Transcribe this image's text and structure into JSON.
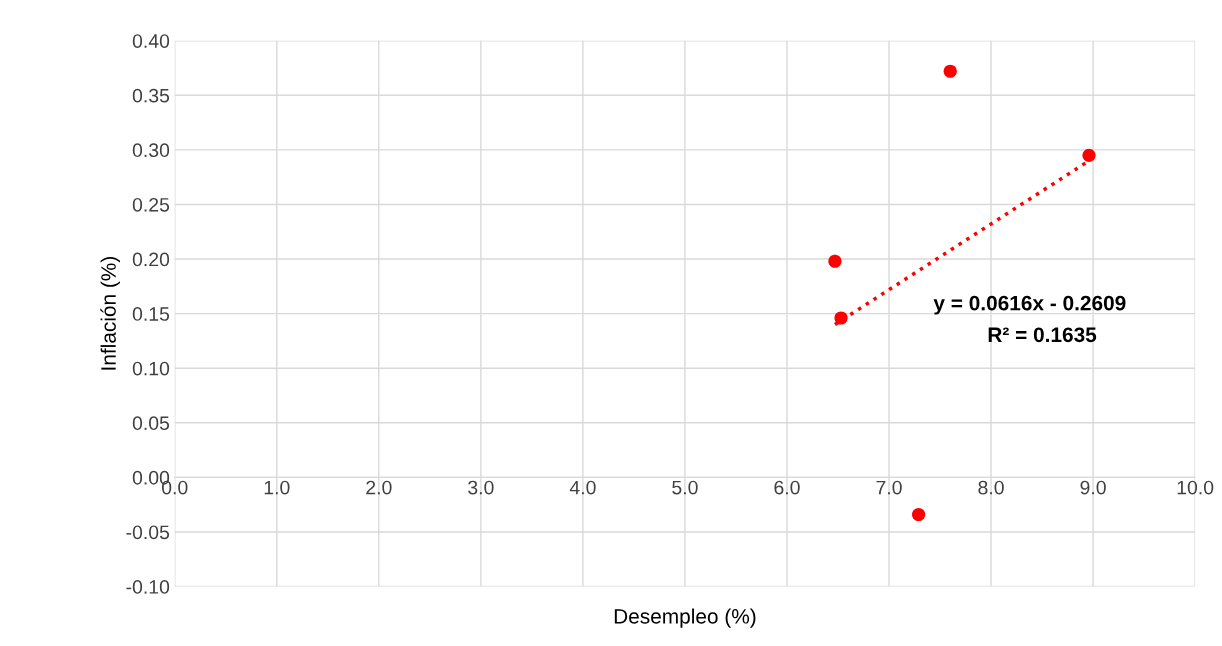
{
  "chart_data": {
    "type": "scatter",
    "xlabel": "Desempleo (%)",
    "ylabel": "Inflación (%)",
    "series": [
      {
        "color": "#ff0000",
        "x": [
          6.47,
          6.53,
          7.6,
          8.96,
          7.29
        ],
        "values": [
          0.198,
          0.146,
          0.372,
          0.295,
          -0.034
        ],
        "marker": "circle"
      },
      {
        "type": "line",
        "color": "#ff0000",
        "x": [
          6.47,
          8.96
        ],
        "values": [
          0.14,
          0.29
        ],
        "line_style": "dotted"
      }
    ],
    "annotations": [
      "y = 0.0616x - 0.2609",
      "R² = 0.1635"
    ],
    "xlim": [
      0,
      10
    ],
    "xticks": [
      {
        "value": 0,
        "label": "0.0"
      },
      {
        "value": 1,
        "label": "1.0"
      },
      {
        "value": 2,
        "label": "2.0"
      },
      {
        "value": 3,
        "label": "3.0"
      },
      {
        "value": 4,
        "label": "4.0"
      },
      {
        "value": 5,
        "label": "5.0"
      },
      {
        "value": 6,
        "label": "6.0"
      },
      {
        "value": 7,
        "label": "7.0"
      },
      {
        "value": 8,
        "label": "8.0"
      },
      {
        "value": 9,
        "label": "9.0"
      },
      {
        "value": 10,
        "label": "10.0"
      }
    ],
    "ylim": [
      -0.1,
      0.4
    ],
    "yticks": [
      {
        "value": -0.1,
        "label": "-0.10"
      },
      {
        "value": -0.05,
        "label": "-0.05"
      },
      {
        "value": 0,
        "label": "0.00"
      },
      {
        "value": 0.05,
        "label": "0.05"
      },
      {
        "value": 0.1,
        "label": "0.10"
      },
      {
        "value": 0.15,
        "label": "0.15"
      },
      {
        "value": 0.2,
        "label": "0.20"
      },
      {
        "value": 0.25,
        "label": "0.25"
      },
      {
        "value": 0.3,
        "label": "0.30"
      },
      {
        "value": 0.35,
        "label": "0.35"
      },
      {
        "value": 0.4,
        "label": "0.40"
      }
    ],
    "grid": true
  }
}
